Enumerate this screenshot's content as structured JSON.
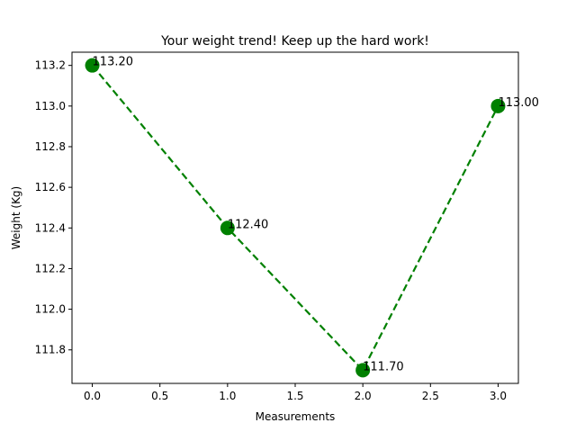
{
  "chart_data": {
    "type": "line",
    "title": "Your weight trend! Keep up the hard work!",
    "xlabel": "Measurements",
    "ylabel": "Weight (Kg)",
    "x": [
      0,
      1,
      2,
      3
    ],
    "values": [
      113.2,
      112.4,
      111.7,
      113.0
    ],
    "data_labels": [
      "113.20",
      "112.40",
      "111.70",
      "113.00"
    ],
    "xlim": [
      -0.15,
      3.15
    ],
    "ylim": [
      111.635,
      113.265
    ],
    "xticks": [
      0.0,
      0.5,
      1.0,
      1.5,
      2.0,
      2.5,
      3.0
    ],
    "xtick_labels": [
      "0.0",
      "0.5",
      "1.0",
      "1.5",
      "2.0",
      "2.5",
      "3.0"
    ],
    "yticks": [
      111.8,
      112.0,
      112.2,
      112.4,
      112.6,
      112.8,
      113.0,
      113.2
    ],
    "ytick_labels": [
      "111.8",
      "112.0",
      "112.2",
      "112.4",
      "112.6",
      "112.8",
      "113.0",
      "113.2"
    ],
    "line_style": "dashed",
    "marker": "circle",
    "grid": false,
    "color": "#008000"
  }
}
